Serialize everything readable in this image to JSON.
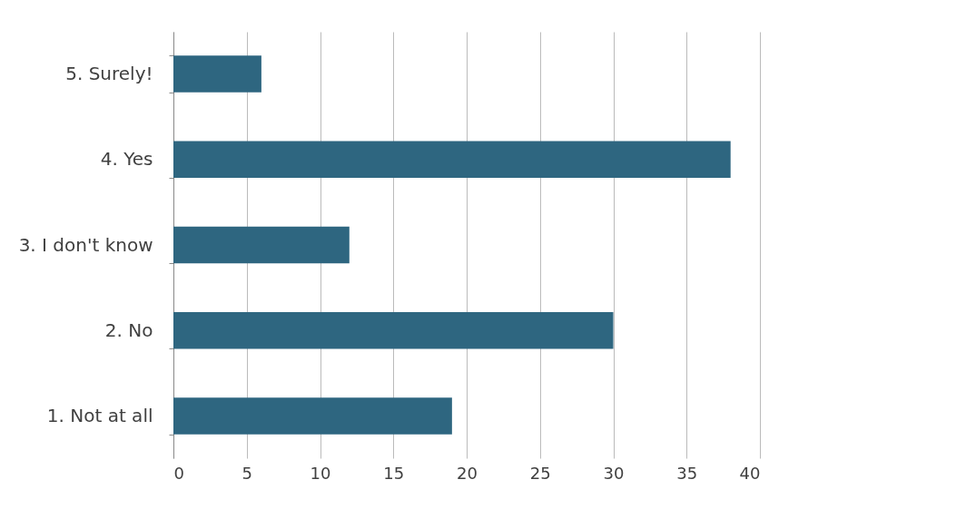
{
  "chart_data": {
    "type": "bar",
    "orientation": "horizontal",
    "categories": [
      "5. Surely!",
      "4. Yes",
      "3. I don't know",
      "2. No",
      "1. Not at all"
    ],
    "values": [
      6,
      38,
      12,
      30,
      19
    ],
    "color": "#2e6680",
    "xlim": [
      0,
      40
    ],
    "xticks": [
      0,
      5,
      10,
      15,
      20,
      25,
      30,
      35,
      40
    ],
    "grid": "x"
  }
}
